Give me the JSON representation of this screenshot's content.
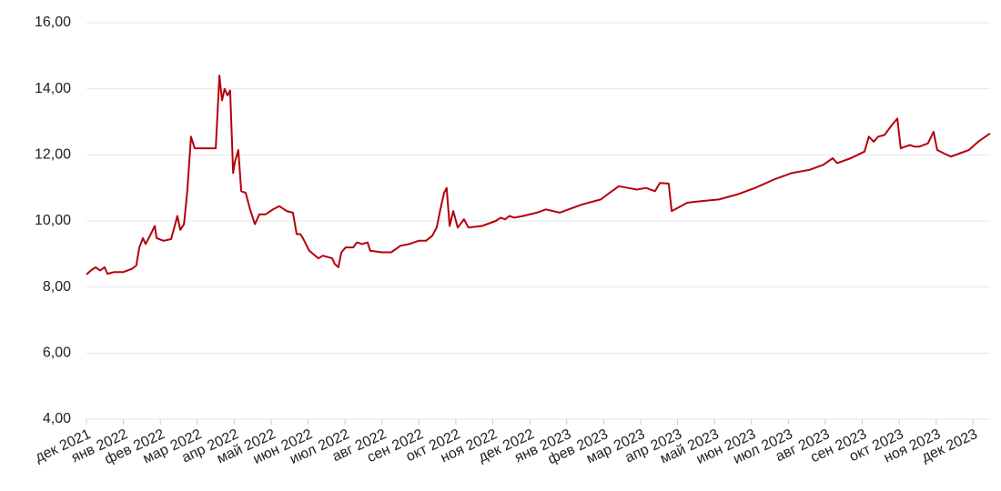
{
  "chart_data": {
    "type": "line",
    "x": [
      0,
      0.12,
      0.25,
      0.37,
      0.49,
      0.57,
      0.74,
      0.99,
      1.23,
      1.35,
      1.43,
      1.53,
      1.6,
      1.72,
      1.85,
      1.9,
      2.09,
      2.29,
      2.39,
      2.46,
      2.54,
      2.64,
      2.73,
      2.83,
      2.93,
      3.5,
      3.6,
      3.67,
      3.74,
      3.82,
      3.89,
      3.97,
      4.02,
      4.11,
      4.19,
      4.31,
      4.43,
      4.56,
      4.68,
      4.85,
      5.05,
      5.22,
      5.42,
      5.59,
      5.69,
      5.79,
      5.86,
      6.03,
      6.16,
      6.28,
      6.4,
      6.65,
      6.72,
      6.82,
      6.9,
      7.02,
      7.22,
      7.32,
      7.46,
      7.61,
      7.68,
      8.0,
      8.25,
      8.5,
      8.74,
      8.99,
      9.19,
      9.36,
      9.48,
      9.58,
      9.68,
      9.75,
      9.83,
      9.93,
      10.05,
      10.22,
      10.34,
      10.71,
      11.08,
      11.21,
      11.33,
      11.45,
      11.58,
      11.82,
      12.19,
      12.44,
      12.81,
      13.42,
      13.92,
      14.16,
      14.41,
      14.66,
      14.9,
      15.15,
      15.39,
      15.52,
      15.76,
      15.84,
      16.01,
      16.26,
      16.63,
      17.12,
      17.61,
      18.1,
      18.6,
      19.09,
      19.58,
      19.95,
      20.2,
      20.32,
      20.69,
      21.06,
      21.18,
      21.31,
      21.43,
      21.6,
      21.8,
      21.95,
      22.04,
      22.29,
      22.41,
      22.54,
      22.78,
      22.93,
      23.03,
      23.2,
      23.4,
      23.65,
      23.89,
      24.14,
      24.46
    ],
    "series": [
      {
        "color": "#b5000b",
        "values": [
          8.38,
          8.5,
          8.6,
          8.5,
          8.6,
          8.4,
          8.45,
          8.45,
          8.55,
          8.65,
          9.2,
          9.48,
          9.3,
          9.55,
          9.85,
          9.48,
          9.4,
          9.45,
          9.85,
          10.15,
          9.73,
          9.9,
          10.9,
          12.55,
          12.2,
          12.2,
          14.4,
          13.65,
          14.0,
          13.8,
          13.95,
          11.45,
          11.8,
          12.15,
          10.9,
          10.85,
          10.35,
          9.9,
          10.2,
          10.2,
          10.35,
          10.45,
          10.3,
          10.25,
          9.6,
          9.6,
          9.48,
          9.1,
          8.98,
          8.87,
          8.95,
          8.87,
          8.7,
          8.6,
          9.05,
          9.2,
          9.2,
          9.35,
          9.3,
          9.35,
          9.1,
          9.05,
          9.05,
          9.25,
          9.3,
          9.4,
          9.4,
          9.55,
          9.8,
          10.35,
          10.85,
          11.0,
          9.85,
          10.3,
          9.8,
          10.05,
          9.8,
          9.85,
          10.0,
          10.1,
          10.05,
          10.15,
          10.1,
          10.15,
          10.25,
          10.35,
          10.25,
          10.5,
          10.65,
          10.85,
          11.05,
          11.0,
          10.95,
          11.0,
          10.9,
          11.15,
          11.13,
          10.3,
          10.4,
          10.55,
          10.6,
          10.65,
          10.8,
          11.0,
          11.25,
          11.45,
          11.55,
          11.7,
          11.9,
          11.75,
          11.9,
          12.1,
          12.55,
          12.4,
          12.55,
          12.6,
          12.9,
          13.1,
          12.2,
          12.3,
          12.25,
          12.25,
          12.35,
          12.7,
          12.15,
          12.05,
          11.95,
          12.05,
          12.15,
          12.4,
          12.65
        ]
      }
    ],
    "xlim": [
      0,
      24.46
    ],
    "xticks": [
      {
        "value": 0,
        "label": "дек 2021"
      },
      {
        "value": 1,
        "label": "янв 2022"
      },
      {
        "value": 2,
        "label": "фев 2022"
      },
      {
        "value": 3,
        "label": "мар 2022"
      },
      {
        "value": 4,
        "label": "апр 2022"
      },
      {
        "value": 5,
        "label": "май 2022"
      },
      {
        "value": 6,
        "label": "июн 2022"
      },
      {
        "value": 7,
        "label": "июл 2022"
      },
      {
        "value": 8,
        "label": "авг 2022"
      },
      {
        "value": 9,
        "label": "сен 2022"
      },
      {
        "value": 10,
        "label": "окт 2022"
      },
      {
        "value": 11,
        "label": "ноя 2022"
      },
      {
        "value": 12,
        "label": "дек 2022"
      },
      {
        "value": 13,
        "label": "янв 2023"
      },
      {
        "value": 14,
        "label": "фев 2023"
      },
      {
        "value": 15,
        "label": "мар 2023"
      },
      {
        "value": 16,
        "label": "апр 2023"
      },
      {
        "value": 17,
        "label": "май 2023"
      },
      {
        "value": 18,
        "label": "июн 2023"
      },
      {
        "value": 19,
        "label": "июл 2023"
      },
      {
        "value": 20,
        "label": "авг 2023"
      },
      {
        "value": 21,
        "label": "сен 2023"
      },
      {
        "value": 22,
        "label": "окт 2023"
      },
      {
        "value": 23,
        "label": "ноя 2023"
      },
      {
        "value": 24,
        "label": "дек 2023"
      }
    ],
    "ylim": [
      4,
      16
    ],
    "yticks": [
      {
        "value": 4,
        "label": "4,00"
      },
      {
        "value": 6,
        "label": "6,00"
      },
      {
        "value": 8,
        "label": "8,00"
      },
      {
        "value": 10,
        "label": "10,00"
      },
      {
        "value": 12,
        "label": "12,00"
      },
      {
        "value": 14,
        "label": "14,00"
      },
      {
        "value": 16,
        "label": "16,00"
      }
    ],
    "grid": true
  }
}
